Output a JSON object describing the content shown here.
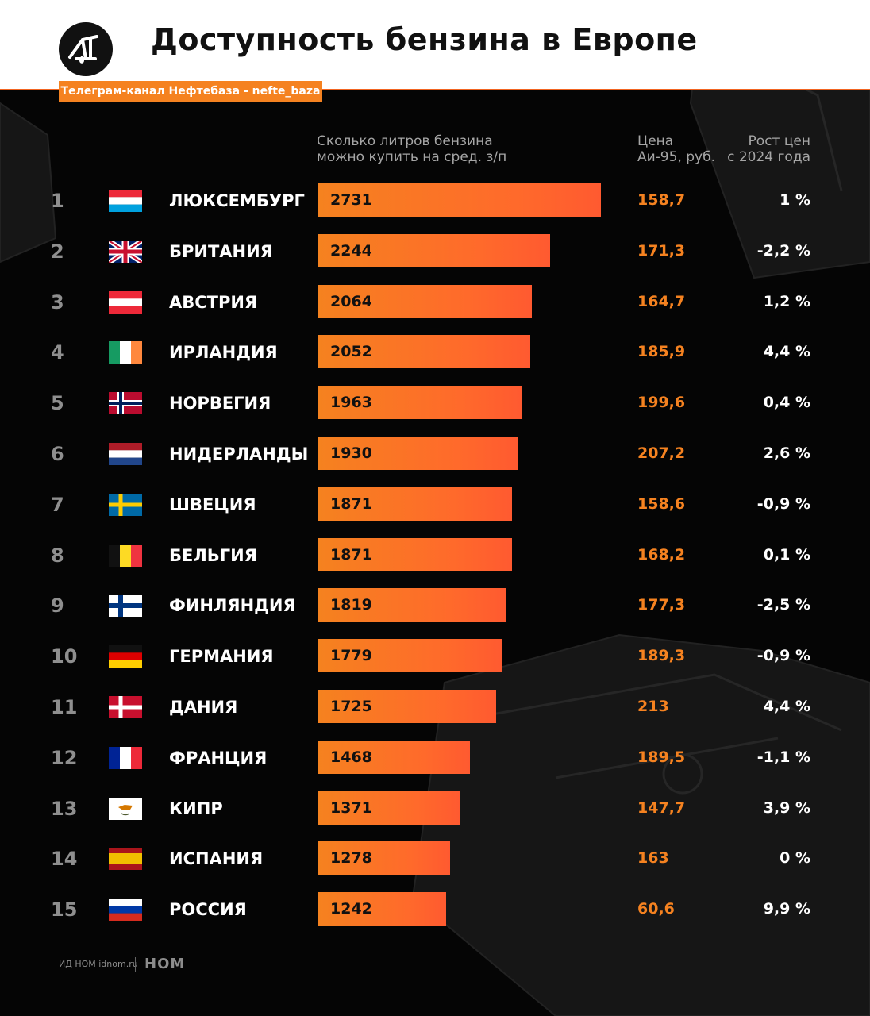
{
  "header": {
    "title": "Доступность бензина в Европе",
    "telegram": "Телеграм-канал Нефтебаза - nefte_baza",
    "logo_icon": "oil-pump-icon"
  },
  "columns": {
    "bars": "Сколько литров бензина\nможно купить на сред. з/п",
    "price": "Цена\nАи-95, руб.",
    "growth": "Рост цен\nс 2024 года"
  },
  "colors": {
    "bar": "#f58220",
    "price": "#f58220",
    "accent": "#f26522"
  },
  "chart_data": {
    "type": "bar",
    "orientation": "horizontal",
    "title": "Доступность бензина в Европе",
    "xlim": [
      0,
      2731
    ],
    "grid": false,
    "rows": [
      {
        "rank": "1",
        "country": "ЛЮКСЕМБУРГ",
        "flag": "luxembourg",
        "liters": 2731,
        "price": "158,7",
        "growth": "1 %"
      },
      {
        "rank": "2",
        "country": "БРИТАНИЯ",
        "flag": "uk",
        "liters": 2244,
        "price": "171,3",
        "growth": "-2,2 %"
      },
      {
        "rank": "3",
        "country": "АВСТРИЯ",
        "flag": "austria",
        "liters": 2064,
        "price": "164,7",
        "growth": "1,2 %"
      },
      {
        "rank": "4",
        "country": "ИРЛАНДИЯ",
        "flag": "ireland",
        "liters": 2052,
        "price": "185,9",
        "growth": "4,4 %"
      },
      {
        "rank": "5",
        "country": "НОРВЕГИЯ",
        "flag": "norway",
        "liters": 1963,
        "price": "199,6",
        "growth": "0,4 %"
      },
      {
        "rank": "6",
        "country": "НИДЕРЛАНДЫ",
        "flag": "netherlands",
        "liters": 1930,
        "price": "207,2",
        "growth": "2,6 %"
      },
      {
        "rank": "7",
        "country": "ШВЕЦИЯ",
        "flag": "sweden",
        "liters": 1871,
        "price": "158,6",
        "growth": "-0,9 %"
      },
      {
        "rank": "8",
        "country": "БЕЛЬГИЯ",
        "flag": "belgium",
        "liters": 1871,
        "price": "168,2",
        "growth": "0,1 %"
      },
      {
        "rank": "9",
        "country": "ФИНЛЯНДИЯ",
        "flag": "finland",
        "liters": 1819,
        "price": "177,3",
        "growth": "-2,5 %"
      },
      {
        "rank": "10",
        "country": "ГЕРМАНИЯ",
        "flag": "germany",
        "liters": 1779,
        "price": "189,3",
        "growth": "-0,9 %"
      },
      {
        "rank": "11",
        "country": "ДАНИЯ",
        "flag": "denmark",
        "liters": 1725,
        "price": "213",
        "growth": "4,4 %"
      },
      {
        "rank": "12",
        "country": "ФРАНЦИЯ",
        "flag": "france",
        "liters": 1468,
        "price": "189,5",
        "growth": "-1,1 %"
      },
      {
        "rank": "13",
        "country": "КИПР",
        "flag": "cyprus",
        "liters": 1371,
        "price": "147,7",
        "growth": "3,9 %"
      },
      {
        "rank": "14",
        "country": "ИСПАНИЯ",
        "flag": "spain",
        "liters": 1278,
        "price": "163",
        "growth": "0 %"
      },
      {
        "rank": "15",
        "country": "РОССИЯ",
        "flag": "russia",
        "liters": 1242,
        "price": "60,6",
        "growth": "9,9 %"
      }
    ]
  },
  "footer": {
    "source": "ИД НОМ idnom.ru",
    "logo": "НОМ"
  }
}
